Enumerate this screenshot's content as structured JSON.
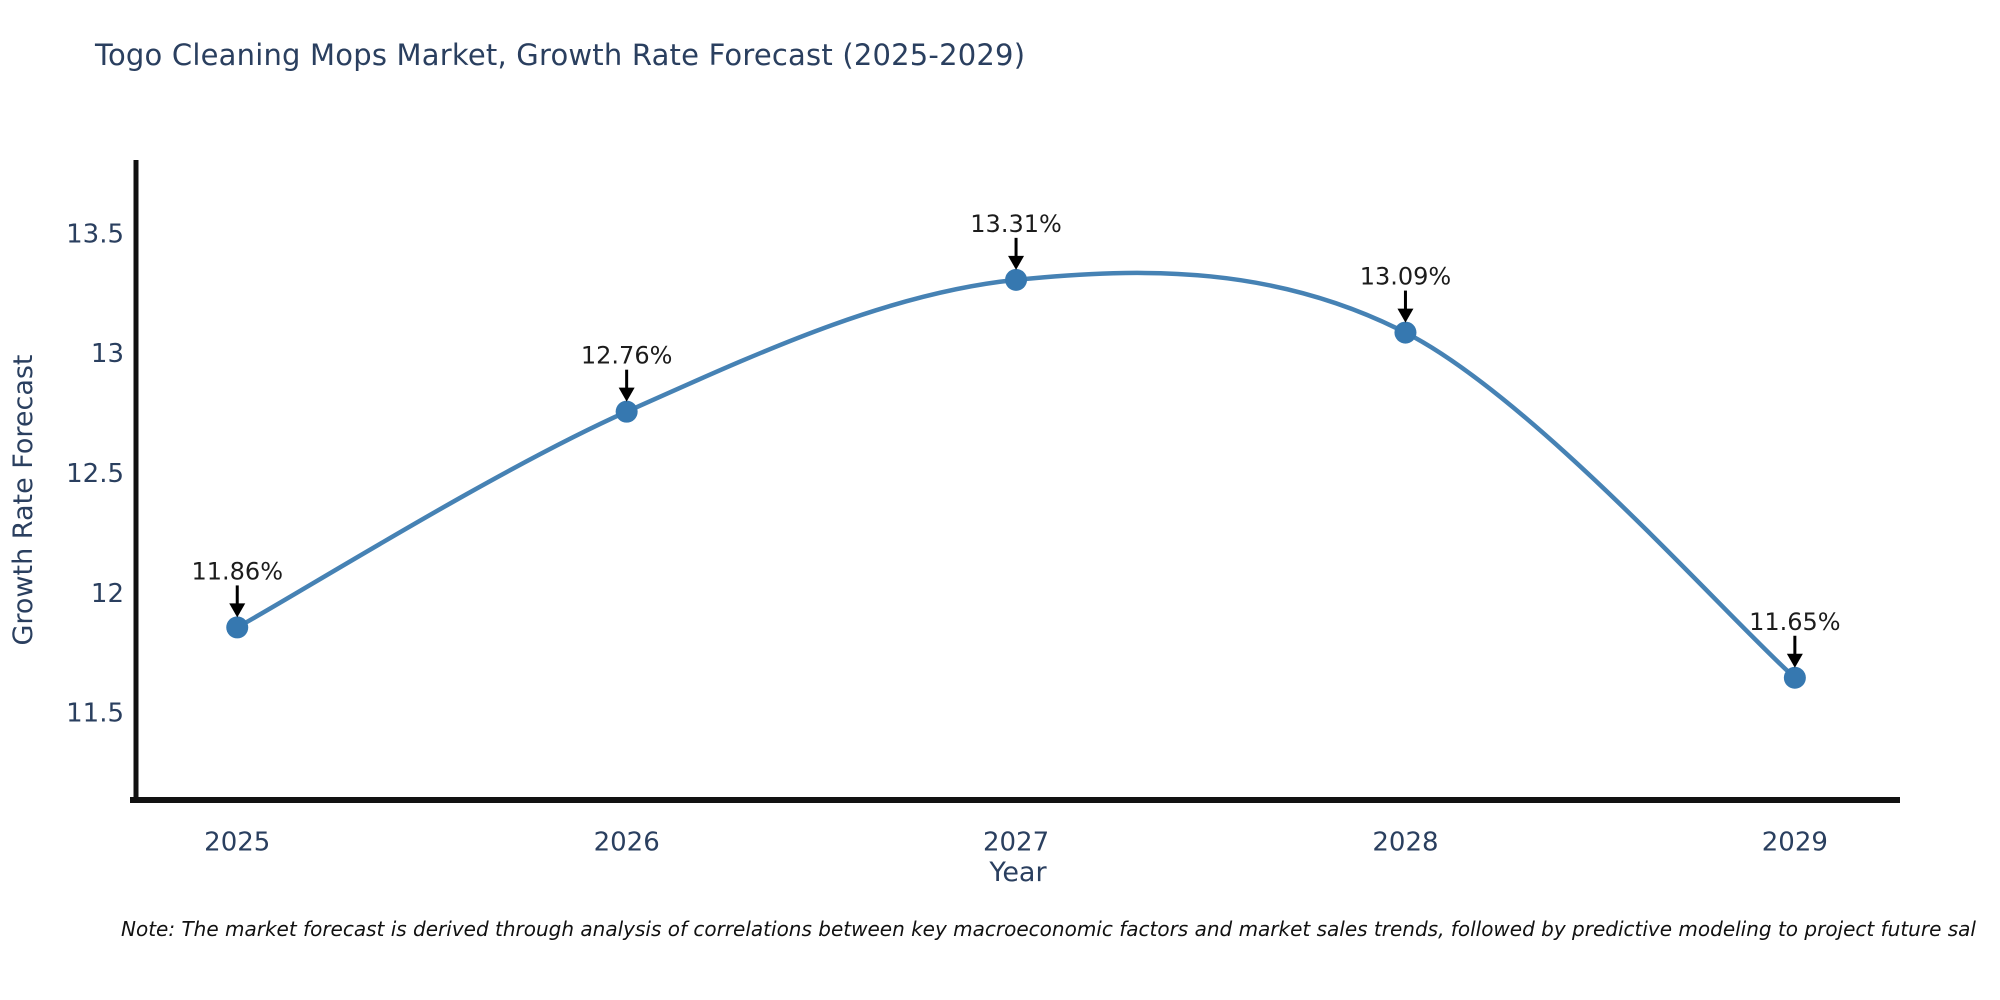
{
  "header": {
    "title": "Togo Cleaning Mops Market, Growth Rate Forecast (2025-2029)"
  },
  "footer": {
    "note": "Note: The market forecast is derived through analysis of correlations between key macroeconomic factors and market sales trends, followed by predictive modeling to project future sal"
  },
  "chart_data": {
    "type": "line",
    "title": "Togo Cleaning Mops Market, Growth Rate Forecast (2025-2029)",
    "x": [
      2025,
      2026,
      2027,
      2028,
      2029
    ],
    "x_tick_labels": [
      "2025",
      "2026",
      "2027",
      "2028",
      "2029"
    ],
    "series": [
      {
        "name": "Growth Rate Forecast",
        "values": [
          11.86,
          12.76,
          13.31,
          13.09,
          11.65
        ]
      }
    ],
    "point_labels": [
      "11.86%",
      "12.76%",
      "13.31%",
      "13.09%",
      "11.65%"
    ],
    "xlabel": "Year",
    "ylabel": "Growth Rate Forecast",
    "yticks": [
      13.5,
      13,
      12.5,
      12,
      11.5
    ],
    "ytick_labels": [
      "13.5",
      "13",
      "12.5",
      "12",
      "11.5"
    ],
    "xlim": [
      2024.74,
      2029.27
    ],
    "ylim": [
      11.14,
      13.81
    ],
    "grid": false,
    "legend": false,
    "smooth": true,
    "colors": {
      "line": "#4682b4",
      "marker": "#3678b0",
      "annotation_text": "#1c1c1c",
      "arrow": "#000000",
      "axis": "#111111",
      "tick_text": "#2a3f5f"
    }
  }
}
